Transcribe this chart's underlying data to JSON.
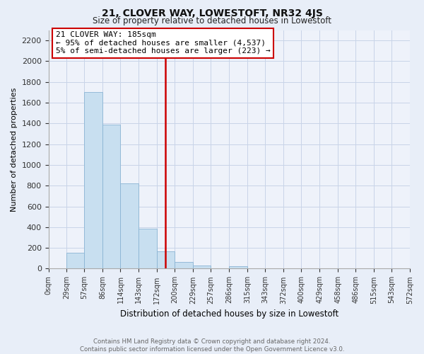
{
  "title": "21, CLOVER WAY, LOWESTOFT, NR32 4JS",
  "subtitle": "Size of property relative to detached houses in Lowestoft",
  "xlabel": "Distribution of detached houses by size in Lowestoft",
  "ylabel": "Number of detached properties",
  "footer_line1": "Contains HM Land Registry data © Crown copyright and database right 2024.",
  "footer_line2": "Contains public sector information licensed under the Open Government Licence v3.0.",
  "bar_edges": [
    0,
    29,
    57,
    86,
    114,
    143,
    172,
    200,
    229,
    257,
    286,
    315,
    343,
    372,
    400,
    429,
    458,
    486,
    515,
    543,
    572
  ],
  "bar_heights": [
    0,
    155,
    1700,
    1390,
    820,
    385,
    165,
    65,
    30,
    0,
    25,
    0,
    0,
    0,
    0,
    0,
    0,
    0,
    0,
    0
  ],
  "bar_color": "#c8dff0",
  "bar_edge_color": "#8ab4d4",
  "property_line_x": 185,
  "property_line_color": "#cc0000",
  "annotation_text_line1": "21 CLOVER WAY: 185sqm",
  "annotation_text_line2": "← 95% of detached houses are smaller (4,537)",
  "annotation_text_line3": "5% of semi-detached houses are larger (223) →",
  "ylim": [
    0,
    2300
  ],
  "yticks": [
    0,
    200,
    400,
    600,
    800,
    1000,
    1200,
    1400,
    1600,
    1800,
    2000,
    2200
  ],
  "xtick_labels": [
    "0sqm",
    "29sqm",
    "57sqm",
    "86sqm",
    "114sqm",
    "143sqm",
    "172sqm",
    "200sqm",
    "229sqm",
    "257sqm",
    "286sqm",
    "315sqm",
    "343sqm",
    "372sqm",
    "400sqm",
    "429sqm",
    "458sqm",
    "486sqm",
    "515sqm",
    "543sqm",
    "572sqm"
  ],
  "grid_color": "#c8d4e8",
  "background_color": "#e8eef8",
  "axis_background": "#eef2fa"
}
